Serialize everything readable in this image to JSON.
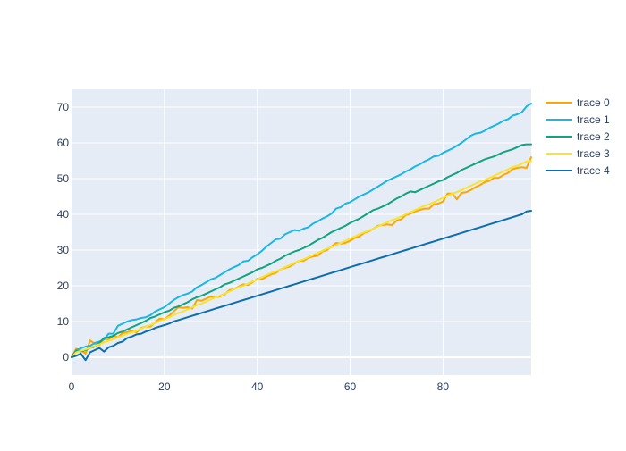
{
  "chart_data": {
    "type": "line",
    "title": "",
    "xlabel": "",
    "ylabel": "",
    "xlim": [
      0,
      99
    ],
    "ylim": [
      -5,
      75
    ],
    "x_ticks": [
      0,
      20,
      40,
      60,
      80
    ],
    "y_ticks": [
      0,
      10,
      20,
      30,
      40,
      50,
      60,
      70
    ],
    "grid": true,
    "legend_position": "right",
    "colors": {
      "plot_background": "#E5ECF6",
      "grid": "#ffffff",
      "axis_text": "#2a3f5f"
    },
    "x": [
      0,
      1,
      2,
      3,
      4,
      5,
      6,
      7,
      8,
      9,
      10,
      11,
      12,
      13,
      14,
      15,
      16,
      17,
      18,
      19,
      20,
      21,
      22,
      23,
      24,
      25,
      26,
      27,
      28,
      29,
      30,
      31,
      32,
      33,
      34,
      35,
      36,
      37,
      38,
      39,
      40,
      41,
      42,
      43,
      44,
      45,
      46,
      47,
      48,
      49,
      50,
      51,
      52,
      53,
      54,
      55,
      56,
      57,
      58,
      59,
      60,
      61,
      62,
      63,
      64,
      65,
      66,
      67,
      68,
      69,
      70,
      71,
      72,
      73,
      74,
      75,
      76,
      77,
      78,
      79,
      80,
      81,
      82,
      83,
      84,
      85,
      86,
      87,
      88,
      89,
      90,
      91,
      92,
      93,
      94,
      95,
      96,
      97,
      98,
      99
    ],
    "series": [
      {
        "name": "trace 0",
        "color": "#FFA500",
        "values": [
          0.0,
          2.4,
          2.0,
          1.0,
          4.7,
          3.8,
          3.4,
          5.2,
          5.0,
          6.0,
          5.6,
          6.8,
          7.0,
          7.4,
          7.0,
          8.2,
          8.6,
          8.6,
          9.8,
          10.8,
          10.6,
          11.6,
          12.8,
          14.0,
          13.8,
          14.0,
          13.6,
          16.0,
          15.8,
          16.4,
          17.0,
          16.8,
          17.0,
          17.6,
          18.8,
          19.0,
          19.8,
          20.4,
          20.2,
          21.0,
          22.0,
          21.8,
          22.6,
          23.2,
          23.6,
          24.6,
          25.0,
          25.4,
          26.2,
          27.0,
          27.0,
          27.8,
          28.2,
          28.4,
          29.6,
          30.0,
          31.0,
          32.0,
          31.8,
          32.0,
          32.6,
          33.4,
          33.8,
          34.8,
          35.2,
          36.0,
          36.8,
          37.0,
          37.2,
          37.0,
          38.2,
          38.6,
          39.8,
          40.2,
          40.8,
          41.2,
          41.6,
          41.6,
          42.8,
          43.0,
          43.6,
          45.8,
          45.8,
          44.2,
          46.0,
          46.2,
          46.8,
          47.6,
          48.2,
          49.0,
          49.4,
          50.2,
          50.2,
          51.0,
          51.6,
          52.6,
          53.0,
          53.2,
          53.0,
          56.0
        ]
      },
      {
        "name": "trace 1",
        "color": "#19B6E6",
        "values": [
          0.0,
          2.0,
          2.5,
          3.0,
          3.2,
          4.0,
          4.4,
          5.0,
          6.6,
          6.6,
          8.8,
          9.4,
          10.0,
          10.4,
          10.6,
          11.0,
          11.2,
          11.8,
          12.8,
          13.4,
          14.0,
          15.0,
          16.0,
          16.8,
          17.4,
          17.8,
          18.4,
          19.6,
          20.2,
          21.0,
          21.8,
          22.2,
          23.0,
          23.8,
          24.6,
          25.2,
          25.8,
          26.8,
          27.0,
          28.0,
          28.8,
          29.8,
          31.0,
          32.0,
          33.0,
          33.2,
          34.4,
          35.0,
          35.6,
          35.4,
          36.0,
          36.4,
          37.4,
          38.0,
          38.8,
          39.4,
          40.2,
          41.6,
          42.0,
          43.0,
          43.4,
          44.2,
          45.0,
          45.6,
          46.2,
          47.0,
          47.8,
          48.6,
          49.4,
          50.0,
          50.6,
          51.2,
          52.0,
          52.6,
          53.4,
          54.0,
          54.8,
          55.4,
          56.2,
          56.4,
          57.2,
          57.8,
          58.4,
          59.2,
          60.0,
          61.0,
          62.0,
          62.6,
          62.8,
          63.4,
          64.2,
          64.8,
          65.4,
          66.2,
          66.6,
          67.6,
          68.0,
          68.6,
          70.2,
          71.0
        ]
      },
      {
        "name": "trace 2",
        "color": "#10A37F",
        "values": [
          0.0,
          1.8,
          1.6,
          2.0,
          2.6,
          3.0,
          4.0,
          5.4,
          5.6,
          6.0,
          6.8,
          7.2,
          7.8,
          8.4,
          9.0,
          9.6,
          10.2,
          11.0,
          11.4,
          12.0,
          12.6,
          13.0,
          13.8,
          14.2,
          14.8,
          15.4,
          16.2,
          16.8,
          17.2,
          17.8,
          18.4,
          19.0,
          19.6,
          20.4,
          20.8,
          21.4,
          22.0,
          22.6,
          23.2,
          23.8,
          24.6,
          25.0,
          25.6,
          26.2,
          27.0,
          27.6,
          28.4,
          29.0,
          29.6,
          30.0,
          30.6,
          31.2,
          32.0,
          32.8,
          33.4,
          34.2,
          35.0,
          35.6,
          36.2,
          36.8,
          37.6,
          38.2,
          38.8,
          39.6,
          40.4,
          41.2,
          41.6,
          42.2,
          42.8,
          43.6,
          44.4,
          45.0,
          45.8,
          46.4,
          46.2,
          46.8,
          47.4,
          48.0,
          48.6,
          49.2,
          49.6,
          50.4,
          51.0,
          51.6,
          52.4,
          53.0,
          53.6,
          54.2,
          54.8,
          55.4,
          55.8,
          56.2,
          56.8,
          57.4,
          57.8,
          58.2,
          58.8,
          59.4,
          59.6,
          59.6
        ]
      },
      {
        "name": "trace 3",
        "color": "#F7E330",
        "values": [
          0.0,
          1.4,
          1.8,
          2.2,
          2.6,
          3.2,
          3.6,
          4.2,
          4.6,
          5.0,
          5.6,
          6.0,
          6.6,
          7.0,
          7.4,
          8.0,
          8.6,
          9.0,
          9.6,
          10.2,
          10.6,
          11.2,
          11.8,
          12.4,
          12.8,
          13.4,
          14.0,
          14.6,
          15.0,
          15.6,
          16.2,
          16.8,
          17.2,
          17.8,
          18.4,
          19.0,
          19.6,
          20.0,
          20.6,
          21.2,
          21.8,
          22.4,
          23.0,
          23.6,
          24.0,
          24.6,
          25.2,
          25.8,
          26.4,
          27.0,
          27.4,
          28.0,
          28.6,
          29.2,
          29.8,
          30.4,
          30.8,
          31.4,
          32.0,
          32.6,
          33.2,
          33.8,
          34.4,
          35.0,
          35.4,
          36.0,
          36.6,
          37.2,
          37.8,
          38.4,
          38.8,
          39.4,
          40.0,
          40.6,
          41.2,
          41.8,
          42.4,
          42.8,
          43.4,
          44.0,
          44.6,
          45.2,
          45.8,
          46.2,
          46.8,
          47.4,
          48.0,
          48.6,
          49.2,
          49.6,
          50.2,
          50.8,
          51.4,
          52.0,
          52.6,
          53.2,
          53.6,
          54.2,
          54.8,
          55.0
        ]
      },
      {
        "name": "trace 4",
        "color": "#0C6EAF",
        "values": [
          0.0,
          0.4,
          1.0,
          -0.8,
          1.4,
          2.0,
          2.6,
          1.6,
          2.8,
          3.2,
          4.0,
          4.4,
          5.4,
          5.8,
          6.4,
          6.6,
          7.2,
          7.6,
          8.2,
          8.6,
          9.0,
          9.4,
          10.0,
          10.4,
          10.8,
          11.2,
          11.6,
          12.0,
          12.4,
          12.8,
          13.2,
          13.6,
          14.0,
          14.4,
          14.8,
          15.2,
          15.6,
          16.0,
          16.4,
          16.8,
          17.2,
          17.6,
          18.0,
          18.4,
          18.8,
          19.2,
          19.6,
          20.0,
          20.4,
          20.8,
          21.2,
          21.6,
          22.0,
          22.4,
          22.8,
          23.2,
          23.6,
          24.0,
          24.4,
          24.8,
          25.2,
          25.6,
          26.0,
          26.4,
          26.8,
          27.2,
          27.6,
          28.0,
          28.4,
          28.8,
          29.2,
          29.6,
          30.0,
          30.4,
          30.8,
          31.2,
          31.6,
          32.0,
          32.4,
          32.8,
          33.2,
          33.6,
          34.0,
          34.4,
          34.8,
          35.2,
          35.6,
          36.0,
          36.4,
          36.8,
          37.2,
          37.6,
          38.0,
          38.4,
          38.8,
          39.2,
          39.6,
          40.0,
          40.8,
          41.0
        ]
      }
    ]
  }
}
